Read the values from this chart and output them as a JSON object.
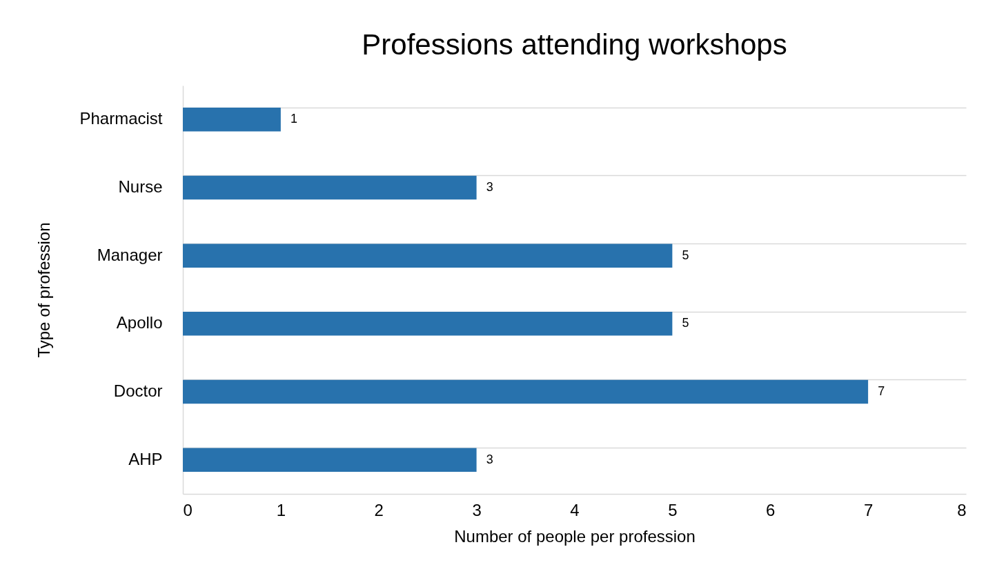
{
  "chart_data": {
    "type": "bar",
    "orientation": "horizontal",
    "title": "Professions attending workshops",
    "xlabel": "Number of people per profession",
    "ylabel": "Type of profession",
    "categories": [
      "Pharmacist",
      "Nurse",
      "Manager",
      "Apollo",
      "Doctor",
      "AHP"
    ],
    "values": [
      1,
      3,
      5,
      5,
      7,
      3
    ],
    "color": "#2872ad",
    "xlim": [
      0,
      8
    ],
    "xticks": [
      0,
      1,
      2,
      3,
      4,
      5,
      6,
      7,
      8
    ],
    "grid": "y",
    "data_labels": true
  }
}
